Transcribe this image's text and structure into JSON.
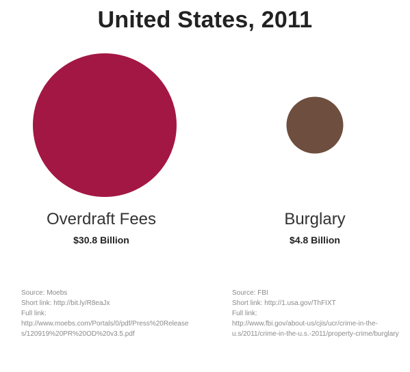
{
  "chart_data": {
    "type": "bubble",
    "title": "United States, 2011",
    "unit": "Billion",
    "categories": [
      "Overdraft Fees",
      "Burglary"
    ],
    "values": [
      30.8,
      4.8
    ],
    "value_labels": [
      "$30.8 Billion",
      "$4.8 Billion"
    ],
    "colors": [
      "#a31744",
      "#6e4e3e"
    ],
    "sources": [
      "Source: Moebs\nShort link: http://bit.ly/R8eaJx\nFull link:\nhttp://www.moebs.com/Portals/0/pdf/Press%20Releases/120919%20PR%20OD%20v3.5.pdf",
      "Source: FBI\nShort link: http://1.usa.gov/ThFIXT\nFull link:\nhttp://www.fbi.gov/about-us/cjis/ucr/crime-in-the-u.s/2011/crime-in-the-u.s.-2011/property-crime/burglary"
    ]
  }
}
